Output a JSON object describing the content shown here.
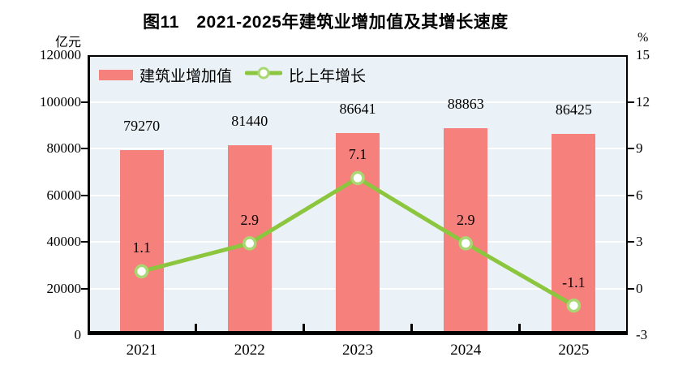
{
  "title": "图11　2021-2025年建筑业增加值及其增长速度",
  "axes": {
    "left_unit": "亿元",
    "right_unit": "%",
    "left_ticks": [
      "120000",
      "100000",
      "80000",
      "60000",
      "40000",
      "20000",
      "0"
    ],
    "right_ticks": [
      "15",
      "12",
      "9",
      "6",
      "3",
      "0",
      "-3"
    ]
  },
  "legend": {
    "bar_label": "建筑业增加值",
    "line_label": "比上年增长"
  },
  "colors": {
    "bar": "#F6807C",
    "line": "#8CC63F",
    "marker_ring": "#A9D873",
    "marker_fill": "#FFFFFF",
    "plot_bg": "#EBF2F7",
    "gridline": "#FFFFFF",
    "axis": "#000000",
    "text": "#000000"
  },
  "chart_data": {
    "type": "bar+line",
    "title": "图11　2021-2025年建筑业增加值及其增长速度",
    "categories": [
      "2021",
      "2022",
      "2023",
      "2024",
      "2025"
    ],
    "series": [
      {
        "name": "建筑业增加值",
        "type": "bar",
        "axis": "left",
        "unit": "亿元",
        "values": [
          79270,
          81440,
          86641,
          88863,
          86425
        ],
        "labels": [
          "79270",
          "81440",
          "86641",
          "88863",
          "86425"
        ]
      },
      {
        "name": "比上年增长",
        "type": "line",
        "axis": "right",
        "unit": "%",
        "values": [
          1.1,
          2.9,
          7.1,
          2.9,
          -1.1
        ],
        "labels": [
          "1.1",
          "2.9",
          "7.1",
          "2.9",
          "-1.1"
        ]
      }
    ],
    "left_axis": {
      "label": "亿元",
      "ylim": [
        0,
        120000
      ],
      "tick_step": 20000
    },
    "right_axis": {
      "label": "%",
      "ylim": [
        -3,
        15
      ],
      "tick_step": 3
    },
    "grid": true,
    "legend_position": "top-left-inside"
  }
}
